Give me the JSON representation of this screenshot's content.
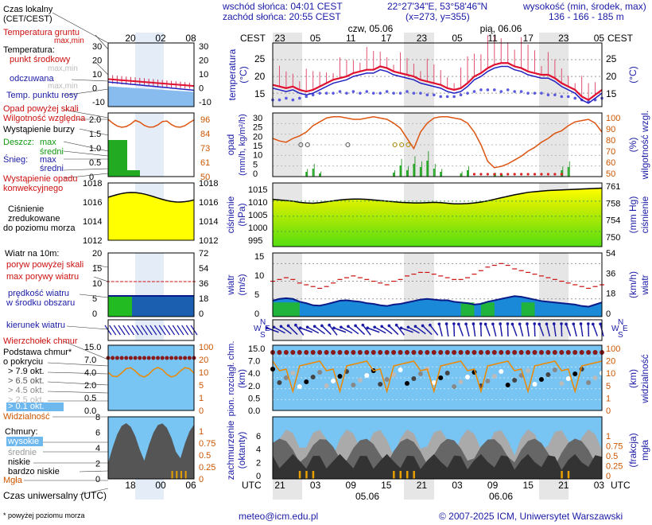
{
  "header": {
    "sunrise": "wschód słońca: 04:01 CEST",
    "sunset": "zachód słońca: 20:55 CEST",
    "coords": "22°27'34\"E, 53°58'46\"N",
    "grid": "(x=273, y=355)",
    "alt_label": "wysokość (min, środek, max)",
    "alt_values": "136 - 166 - 185 m"
  },
  "left_labels": {
    "local_time": "Czas lokalny",
    "local_time_sub": "(CET/CEST)",
    "soil_temp": "Temperatura gruntu",
    "soil_temp_sub": "max,min",
    "temperature": "Temperatura:",
    "temp_mid": "punkt środkowy",
    "temp_maxmin": "max,min",
    "felt": "odczuwana",
    "felt_maxmin": "max,min",
    "dew": "Temp. punktu rosy",
    "precip_over": "Opad powyżej skali",
    "humidity": "Wilgotność względna",
    "storm": "Wystąpienie burzy",
    "rain": "Deszcz:",
    "rain_max": "max",
    "rain_mid": "średni",
    "snow": "Śnieg:",
    "snow_max": "max",
    "snow_mid": "średni",
    "conv1": "Wystąpienie opadu",
    "conv2": "konwekcyjnego",
    "press1": "Ciśnienie",
    "press2": "zredukowane",
    "press3": "do poziomu morza",
    "wind_title": "Wiatr na 10m:",
    "gust_over": "poryw powyżej skali",
    "gust_max": "max porywy wiatru",
    "wind_speed1": "prędkość wiatru",
    "wind_speed2": "w środku obszaru",
    "wind_dir": "kierunek wiatru",
    "cloud_top": "Wierzchołek chmur",
    "cloud_base1": "Podstawa chmur*",
    "cloud_base2": "o pokryciu",
    "okt79": "> 7.9 okt.",
    "okt65": "> 6.5 okt.",
    "okt45": "> 4.5 okt.",
    "okt25": "> 2.5 okt.",
    "okt01": "> 0.1 okt.",
    "visibility": "Widzialność",
    "clouds": "Chmury:",
    "high": "wysokie",
    "mid": "średnie",
    "low": "niskie",
    "very_low": "bardzo niskie",
    "fog": "Mgła",
    "utc": "Czas uniwersalny (UTC)",
    "footnote": "* powyżej poziomu morza"
  },
  "left_axes": {
    "local_ticks": [
      "20",
      "02",
      "08"
    ],
    "utc_ticks": [
      "18",
      "00",
      "06"
    ],
    "temp_ticks": [
      "30",
      "20",
      "10",
      "0",
      "-10"
    ],
    "prec_ticks": [
      "2.0",
      "1.5",
      "1.0",
      "0.5",
      "0"
    ],
    "hum_ticks": [
      "96",
      "84",
      "73",
      "61",
      "50"
    ],
    "press_ticks": [
      "1018",
      "1016",
      "1014",
      "1012"
    ],
    "wind_ticks_ms": [
      "20",
      "15",
      "10",
      "5",
      "0"
    ],
    "wind_ticks_kmh": [
      "72",
      "54",
      "36",
      "18",
      "0"
    ],
    "cb_ticks": [
      "15.0",
      "7.0",
      "4.0",
      "2.0",
      "0.5",
      "0.0"
    ],
    "vis_ticks": [
      "100",
      "20",
      "10",
      "5",
      "1",
      "0"
    ],
    "cl_ticks": [
      "8",
      "6",
      "4",
      "2",
      "0"
    ],
    "fog_ticks": [
      "1",
      "0.75",
      "0.5",
      "0.25",
      "0"
    ]
  },
  "main": {
    "cest_label": "CEST",
    "utc_label": "UTC",
    "day1": "czw, 05.06",
    "day2": "pią, 06.06",
    "utc_day1": "05.06",
    "utc_day2": "06.06",
    "top_ticks": [
      "23",
      "05",
      "11",
      "17",
      "23",
      "05",
      "11",
      "17",
      "23",
      "05"
    ],
    "bottom_ticks": [
      "21",
      "03",
      "09",
      "15",
      "21",
      "03",
      "09",
      "15",
      "21",
      "03"
    ],
    "temp_label": "temperatura",
    "temp_unit": "(°C)",
    "temp_ticks": [
      "25",
      "20",
      "15"
    ],
    "prec_label": "opad",
    "prec_unit": "(mm/h, kg/m²/h)",
    "prec_ticks": [
      "30",
      "25",
      "20",
      "15",
      "10",
      "5",
      "0"
    ],
    "hum_label": "wilgotność wzgl.",
    "hum_unit": "(%)",
    "hum_ticks": [
      "100",
      "90",
      "80",
      "70",
      "60",
      "50"
    ],
    "press_label": "ciśnienie",
    "press_unit": "(hPa)",
    "press_ticks": [
      "1015",
      "1010",
      "1005",
      "1000",
      "995"
    ],
    "press_r_label": "ciśnienie",
    "press_r_unit": "(mm Hg)",
    "press_r_ticks": [
      "761",
      "758",
      "754",
      "750"
    ],
    "wind_label": "wiatr",
    "wind_unit": "(m/s)",
    "wind_ticks": [
      "15",
      "10",
      "5",
      "0"
    ],
    "wind_r_unit": "(km/h)",
    "wind_r_ticks": [
      "54",
      "36",
      "18",
      "0"
    ],
    "compass_n": "N",
    "compass_w": "W",
    "compass_e": "E",
    "compass_s": "S",
    "cb_label": "pion. rozciągł. chm.",
    "cb_unit": "(km)",
    "cb_ticks": [
      "15.0",
      "7.0",
      "4.0",
      "2.0",
      "0.5",
      "0.0"
    ],
    "vis_label": "widzialność",
    "vis_unit": "(km)",
    "vis_ticks": [
      "100",
      "20",
      "10",
      "5",
      "1",
      "0"
    ],
    "cl_label": "zachmurzenie",
    "cl_unit": "(oktanty)",
    "cl_ticks": [
      "6",
      "4",
      "2",
      "0"
    ],
    "fog_label": "mgła",
    "fog_unit": "(frakcja)",
    "fog_ticks": [
      "1",
      "0.75",
      "0.5",
      "0.25",
      "0"
    ]
  },
  "footer": {
    "email": "meteo@icm.edu.pl",
    "copyright": "© 2007-2025 ICM, Uniwersytet Warszawski"
  },
  "colors": {
    "frame_blue": "#1a1aa6",
    "temp_red": "#e01030",
    "felt_blue": "#2020c0",
    "humidity_orange": "#dd5511",
    "pressure_yellow": "#ffff00",
    "pressure_green": "#55dd11",
    "night_gray": "#e6e6e6"
  },
  "chart_data": [
    {
      "type": "line",
      "title": "temperatura",
      "ylabel": "(°C)",
      "ylim": [
        11,
        30
      ],
      "series": [
        {
          "name": "punkt środkowy",
          "values": [
            17.5,
            17,
            16.5,
            17,
            16,
            15.5,
            16,
            17,
            18,
            19,
            19.5,
            20,
            21,
            21.5,
            22,
            22,
            23,
            22.5,
            21.5,
            21,
            20.5,
            20,
            19,
            18.5,
            18,
            17.5,
            16.5,
            16,
            16.5,
            18,
            20,
            21,
            22.5,
            23.5,
            24,
            24,
            23,
            22.5,
            21.5,
            21,
            20.5,
            20.5,
            19.5,
            18,
            17,
            16,
            14,
            13,
            14.5,
            16
          ]
        },
        {
          "name": "odczuwana",
          "values": [
            16.5,
            16,
            15.5,
            16,
            15,
            14.5,
            15,
            16,
            17,
            18,
            18.5,
            19,
            20,
            20.5,
            21,
            21,
            22,
            21.5,
            20.5,
            20,
            19.5,
            19,
            18,
            17.5,
            17,
            16.5,
            15.5,
            15,
            15.5,
            17,
            19,
            20,
            21.5,
            22.5,
            23,
            23,
            22,
            21.5,
            20.5,
            20,
            19.5,
            19.5,
            18.5,
            17,
            16,
            15,
            13,
            12,
            13.5,
            15
          ]
        },
        {
          "name": "Temp. punktu rosy",
          "values": [
            13,
            13,
            13.5,
            13,
            13.5,
            14,
            14.5,
            15,
            15,
            15,
            15.5,
            15,
            15.5,
            15,
            15.5,
            15,
            15,
            15.5,
            15,
            15,
            15.5,
            15,
            15,
            14.5,
            14.5,
            14,
            14,
            14,
            14.5,
            15,
            15.5,
            16,
            16,
            16,
            15.5,
            16,
            15.5,
            15.5,
            15,
            15,
            15,
            14.5,
            14.5,
            14,
            14,
            13.5,
            13,
            12.5,
            13,
            13.5
          ]
        }
      ]
    },
    {
      "type": "line",
      "title": "opad / wilgotność wzgl.",
      "series": [
        {
          "name": "wilgotność wzgl.",
          "values": [
            80,
            78,
            77,
            80,
            82,
            85,
            90,
            93,
            96,
            97,
            97,
            96,
            95,
            95,
            96,
            97,
            96,
            95,
            92,
            88,
            80,
            72,
            85,
            92,
            96,
            97,
            97,
            96,
            95,
            92,
            85,
            75,
            62,
            57,
            58,
            60,
            63,
            66,
            70,
            73,
            77,
            80,
            84,
            86,
            90,
            93,
            94,
            95,
            92,
            85
          ]
        }
      ]
    },
    {
      "type": "area",
      "title": "ciśnienie",
      "ylabel": "(hPa)",
      "ylim": [
        995,
        1016
      ],
      "series": [
        {
          "name": "ciśnienie",
          "values": [
            1010.6,
            1010.4,
            1010.2,
            1010,
            1009.6,
            1009.4,
            1009.3,
            1009.5,
            1009.8,
            1010.1,
            1010.4,
            1010.6,
            1010.7,
            1010.7,
            1010.6,
            1010.4,
            1010.2,
            1010,
            1009.8,
            1009.6,
            1009.5,
            1009.4,
            1009.4,
            1009.5,
            1009.6,
            1009.5,
            1009.3,
            1009.1,
            1009.1,
            1009.2,
            1009.4,
            1009.7,
            1010.1,
            1010.6,
            1011.1,
            1011.6,
            1012.1,
            1012.5,
            1012.9,
            1013.1,
            1013.3,
            1013.5,
            1013.6,
            1013.7,
            1013.8,
            1013.9,
            1014,
            1014.1,
            1014.2,
            1014.3
          ]
        }
      ]
    },
    {
      "type": "area",
      "title": "wiatr",
      "ylabel": "(m/s)",
      "ylim": [
        0,
        18
      ],
      "series": [
        {
          "name": "prędkość wiatru",
          "values": [
            4.5,
            5,
            5.2,
            5,
            4.2,
            3.8,
            3.2,
            3.1,
            3.5,
            4,
            4.5,
            4.6,
            4.4,
            4.2,
            3.8,
            3.6,
            3.2,
            3,
            3.4,
            3.6,
            4,
            4.4,
            4.8,
            5,
            4.8,
            4.6,
            4.6,
            4.2,
            4,
            3.8,
            3.4,
            3.6,
            4.2,
            4.6,
            5,
            5.4,
            5.8,
            5.6,
            5.2,
            4.8,
            4.4,
            4.2,
            4,
            3.8,
            3.6,
            3.4,
            3,
            2.8,
            3.4,
            4
          ]
        },
        {
          "name": "max porywy wiatru",
          "values": [
            10,
            10.5,
            11,
            10.5,
            9.5,
            9,
            8.5,
            8,
            8.5,
            9.5,
            10.5,
            11,
            11.5,
            11,
            10.5,
            10,
            9.5,
            9,
            10,
            10.5,
            11.5,
            12,
            12.5,
            12.5,
            12,
            11.5,
            11,
            10.5,
            10.5,
            11,
            12,
            13,
            14,
            14.5,
            15,
            14.5,
            13.5,
            13,
            12.5,
            12,
            11.5,
            11,
            10.5,
            10,
            9.5,
            9,
            8.5,
            8,
            8.5,
            9
          ]
        }
      ]
    }
  ]
}
